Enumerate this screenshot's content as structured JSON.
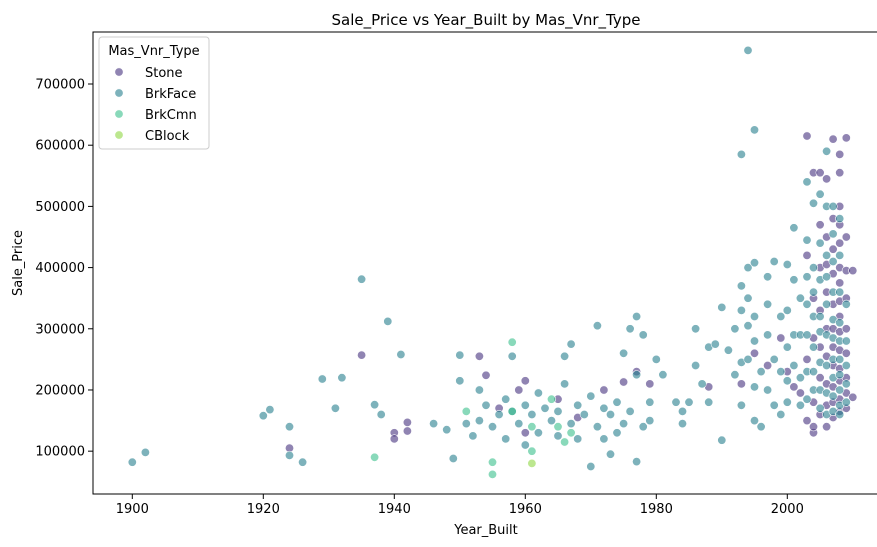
{
  "chart_data": {
    "type": "scatter",
    "title": "Sale_Price vs Year_Built by Mas_Vnr_Type",
    "xlabel": "Year_Built",
    "ylabel": "Sale_Price",
    "xlim": [
      1894,
      2014
    ],
    "ylim": [
      30000,
      785000
    ],
    "xticks": [
      1900,
      1920,
      1940,
      1960,
      1980,
      2000
    ],
    "yticks": [
      100000,
      200000,
      300000,
      400000,
      500000,
      600000,
      700000
    ],
    "grid": false,
    "legend": {
      "title": "Mas_Vnr_Type",
      "position": "top-left"
    },
    "series": [
      {
        "name": "Stone",
        "color": "#46327e",
        "points": [
          [
            1924,
            105000
          ],
          [
            1935,
            257000
          ],
          [
            1940,
            130000
          ],
          [
            1940,
            120000
          ],
          [
            1942,
            147000
          ],
          [
            1942,
            133000
          ],
          [
            1953,
            255000
          ],
          [
            1954,
            224000
          ],
          [
            1956,
            170000
          ],
          [
            1959,
            200000
          ],
          [
            1960,
            215000
          ],
          [
            1960,
            130000
          ],
          [
            1965,
            185000
          ],
          [
            1968,
            155000
          ],
          [
            1972,
            200000
          ],
          [
            1975,
            213000
          ],
          [
            1977,
            230000
          ],
          [
            1979,
            210000
          ],
          [
            1988,
            205000
          ],
          [
            1993,
            210000
          ],
          [
            1995,
            260000
          ],
          [
            1997,
            240000
          ],
          [
            1999,
            285000
          ],
          [
            2000,
            230000
          ],
          [
            2001,
            205000
          ],
          [
            2002,
            195000
          ],
          [
            2003,
            615000
          ],
          [
            2003,
            420000
          ],
          [
            2003,
            250000
          ],
          [
            2003,
            150000
          ],
          [
            2004,
            130000
          ],
          [
            2004,
            555000
          ],
          [
            2004,
            350000
          ],
          [
            2004,
            285000
          ],
          [
            2004,
            180000
          ],
          [
            2004,
            140000
          ],
          [
            2005,
            555000
          ],
          [
            2005,
            470000
          ],
          [
            2005,
            400000
          ],
          [
            2005,
            330000
          ],
          [
            2005,
            270000
          ],
          [
            2005,
            220000
          ],
          [
            2005,
            160000
          ],
          [
            2006,
            545000
          ],
          [
            2006,
            450000
          ],
          [
            2006,
            405000
          ],
          [
            2006,
            360000
          ],
          [
            2006,
            300000
          ],
          [
            2006,
            255000
          ],
          [
            2006,
            210000
          ],
          [
            2006,
            175000
          ],
          [
            2006,
            140000
          ],
          [
            2007,
            610000
          ],
          [
            2007,
            480000
          ],
          [
            2007,
            430000
          ],
          [
            2007,
            390000
          ],
          [
            2007,
            340000
          ],
          [
            2007,
            300000
          ],
          [
            2007,
            270000
          ],
          [
            2007,
            240000
          ],
          [
            2007,
            205000
          ],
          [
            2007,
            180000
          ],
          [
            2007,
            155000
          ],
          [
            2008,
            585000
          ],
          [
            2008,
            555000
          ],
          [
            2008,
            500000
          ],
          [
            2008,
            470000
          ],
          [
            2008,
            440000
          ],
          [
            2008,
            400000
          ],
          [
            2008,
            375000
          ],
          [
            2008,
            345000
          ],
          [
            2008,
            320000
          ],
          [
            2008,
            295000
          ],
          [
            2008,
            265000
          ],
          [
            2008,
            235000
          ],
          [
            2008,
            215000
          ],
          [
            2008,
            185000
          ],
          [
            2008,
            165000
          ],
          [
            2009,
            612000
          ],
          [
            2009,
            450000
          ],
          [
            2009,
            395000
          ],
          [
            2009,
            350000
          ],
          [
            2009,
            300000
          ],
          [
            2009,
            260000
          ],
          [
            2009,
            220000
          ],
          [
            2009,
            195000
          ],
          [
            2009,
            170000
          ],
          [
            2010,
            395000
          ],
          [
            2010,
            188000
          ]
        ]
      },
      {
        "name": "BrkFace",
        "color": "#277f8e",
        "points": [
          [
            1900,
            82000
          ],
          [
            1902,
            98000
          ],
          [
            1920,
            158000
          ],
          [
            1921,
            168000
          ],
          [
            1924,
            140000
          ],
          [
            1924,
            93000
          ],
          [
            1926,
            82000
          ],
          [
            1929,
            218000
          ],
          [
            1931,
            170000
          ],
          [
            1932,
            220000
          ],
          [
            1935,
            381000
          ],
          [
            1937,
            176000
          ],
          [
            1938,
            160000
          ],
          [
            1939,
            312000
          ],
          [
            1941,
            258000
          ],
          [
            1946,
            145000
          ],
          [
            1948,
            135000
          ],
          [
            1949,
            88000
          ],
          [
            1950,
            257000
          ],
          [
            1950,
            215000
          ],
          [
            1951,
            145000
          ],
          [
            1952,
            125000
          ],
          [
            1953,
            200000
          ],
          [
            1953,
            150000
          ],
          [
            1954,
            175000
          ],
          [
            1955,
            140000
          ],
          [
            1956,
            160000
          ],
          [
            1957,
            185000
          ],
          [
            1957,
            120000
          ],
          [
            1958,
            255000
          ],
          [
            1958,
            165000
          ],
          [
            1959,
            145000
          ],
          [
            1960,
            175000
          ],
          [
            1960,
            110000
          ],
          [
            1961,
            160000
          ],
          [
            1962,
            130000
          ],
          [
            1962,
            195000
          ],
          [
            1963,
            170000
          ],
          [
            1964,
            150000
          ],
          [
            1965,
            125000
          ],
          [
            1965,
            165000
          ],
          [
            1966,
            255000
          ],
          [
            1966,
            210000
          ],
          [
            1967,
            145000
          ],
          [
            1967,
            275000
          ],
          [
            1968,
            175000
          ],
          [
            1968,
            120000
          ],
          [
            1969,
            160000
          ],
          [
            1970,
            75000
          ],
          [
            1970,
            190000
          ],
          [
            1971,
            305000
          ],
          [
            1971,
            140000
          ],
          [
            1972,
            120000
          ],
          [
            1972,
            170000
          ],
          [
            1973,
            95000
          ],
          [
            1973,
            160000
          ],
          [
            1974,
            180000
          ],
          [
            1974,
            130000
          ],
          [
            1975,
            145000
          ],
          [
            1975,
            260000
          ],
          [
            1976,
            300000
          ],
          [
            1976,
            165000
          ],
          [
            1977,
            320000
          ],
          [
            1977,
            83000
          ],
          [
            1977,
            225000
          ],
          [
            1978,
            140000
          ],
          [
            1978,
            290000
          ],
          [
            1979,
            180000
          ],
          [
            1979,
            150000
          ],
          [
            1980,
            250000
          ],
          [
            1981,
            225000
          ],
          [
            1983,
            180000
          ],
          [
            1984,
            165000
          ],
          [
            1984,
            145000
          ],
          [
            1985,
            180000
          ],
          [
            1986,
            300000
          ],
          [
            1986,
            240000
          ],
          [
            1987,
            210000
          ],
          [
            1988,
            270000
          ],
          [
            1988,
            180000
          ],
          [
            1989,
            275000
          ],
          [
            1990,
            335000
          ],
          [
            1990,
            118000
          ],
          [
            1991,
            265000
          ],
          [
            1992,
            225000
          ],
          [
            1992,
            300000
          ],
          [
            1993,
            585000
          ],
          [
            1993,
            370000
          ],
          [
            1993,
            330000
          ],
          [
            1993,
            245000
          ],
          [
            1993,
            175000
          ],
          [
            1994,
            755000
          ],
          [
            1994,
            400000
          ],
          [
            1994,
            350000
          ],
          [
            1994,
            305000
          ],
          [
            1994,
            250000
          ],
          [
            1995,
            625000
          ],
          [
            1995,
            408000
          ],
          [
            1995,
            320000
          ],
          [
            1995,
            280000
          ],
          [
            1995,
            205000
          ],
          [
            1995,
            150000
          ],
          [
            1996,
            230000
          ],
          [
            1996,
            140000
          ],
          [
            1997,
            385000
          ],
          [
            1997,
            340000
          ],
          [
            1997,
            290000
          ],
          [
            1997,
            200000
          ],
          [
            1998,
            410000
          ],
          [
            1998,
            250000
          ],
          [
            1998,
            175000
          ],
          [
            1999,
            320000
          ],
          [
            1999,
            230000
          ],
          [
            1999,
            160000
          ],
          [
            2000,
            405000
          ],
          [
            2000,
            330000
          ],
          [
            2000,
            270000
          ],
          [
            2000,
            215000
          ],
          [
            2000,
            180000
          ],
          [
            2001,
            465000
          ],
          [
            2001,
            380000
          ],
          [
            2001,
            290000
          ],
          [
            2001,
            240000
          ],
          [
            2002,
            350000
          ],
          [
            2002,
            290000
          ],
          [
            2002,
            220000
          ],
          [
            2002,
            175000
          ],
          [
            2003,
            540000
          ],
          [
            2003,
            445000
          ],
          [
            2003,
            385000
          ],
          [
            2003,
            340000
          ],
          [
            2003,
            290000
          ],
          [
            2003,
            230000
          ],
          [
            2003,
            185000
          ],
          [
            2004,
            505000
          ],
          [
            2004,
            400000
          ],
          [
            2004,
            360000
          ],
          [
            2004,
            320000
          ],
          [
            2004,
            270000
          ],
          [
            2004,
            230000
          ],
          [
            2004,
            200000
          ],
          [
            2005,
            520000
          ],
          [
            2005,
            440000
          ],
          [
            2005,
            380000
          ],
          [
            2005,
            320000
          ],
          [
            2005,
            295000
          ],
          [
            2005,
            245000
          ],
          [
            2005,
            200000
          ],
          [
            2005,
            170000
          ],
          [
            2006,
            590000
          ],
          [
            2006,
            500000
          ],
          [
            2006,
            420000
          ],
          [
            2006,
            385000
          ],
          [
            2006,
            340000
          ],
          [
            2006,
            290000
          ],
          [
            2006,
            240000
          ],
          [
            2006,
            195000
          ],
          [
            2006,
            160000
          ],
          [
            2007,
            500000
          ],
          [
            2007,
            455000
          ],
          [
            2007,
            410000
          ],
          [
            2007,
            360000
          ],
          [
            2007,
            315000
          ],
          [
            2007,
            285000
          ],
          [
            2007,
            250000
          ],
          [
            2007,
            220000
          ],
          [
            2007,
            190000
          ],
          [
            2007,
            165000
          ],
          [
            2008,
            480000
          ],
          [
            2008,
            420000
          ],
          [
            2008,
            360000
          ],
          [
            2008,
            310000
          ],
          [
            2008,
            280000
          ],
          [
            2008,
            250000
          ],
          [
            2008,
            225000
          ],
          [
            2008,
            200000
          ],
          [
            2008,
            175000
          ],
          [
            2008,
            160000
          ],
          [
            2009,
            340000
          ],
          [
            2009,
            280000
          ],
          [
            2009,
            240000
          ],
          [
            2009,
            210000
          ],
          [
            2009,
            180000
          ]
        ]
      },
      {
        "name": "BrkCmn",
        "color": "#3bbf8c",
        "points": [
          [
            1937,
            90000
          ],
          [
            1951,
            165000
          ],
          [
            1955,
            82000
          ],
          [
            1955,
            62000
          ],
          [
            1958,
            278000
          ],
          [
            1958,
            165000
          ],
          [
            1961,
            140000
          ],
          [
            1961,
            100000
          ],
          [
            1964,
            185000
          ],
          [
            1965,
            140000
          ],
          [
            1966,
            115000
          ],
          [
            1967,
            130000
          ]
        ]
      },
      {
        "name": "CBlock",
        "color": "#8fd744",
        "points": [
          [
            1961,
            80000
          ]
        ]
      }
    ]
  }
}
